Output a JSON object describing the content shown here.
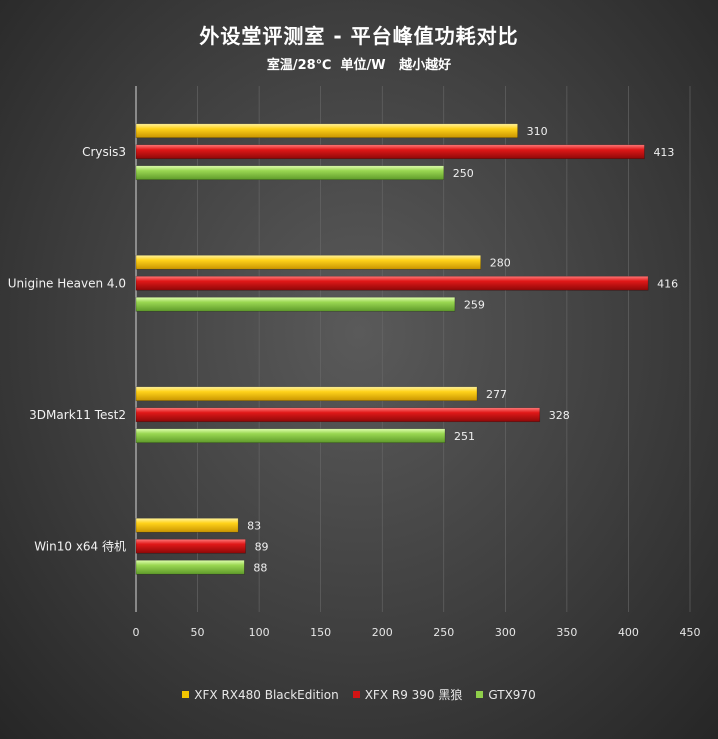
{
  "title": "外设堂评测室 -  平台峰值功耗对比",
  "subtitle": "室温/28℃  单位/W   越小越好",
  "chart_data": {
    "type": "bar",
    "orientation": "horizontal",
    "categories": [
      "Crysis3",
      "Unigine Heaven 4.0",
      "3DMark11 Test2",
      "Win10 x64 待机"
    ],
    "series": [
      {
        "name": "XFX RX480 BlackEdition",
        "color": "#f2c400",
        "values": [
          310,
          280,
          277,
          83
        ]
      },
      {
        "name": "XFX R9 390 黑狼",
        "color": "#d21414",
        "values": [
          413,
          416,
          328,
          89
        ]
      },
      {
        "name": "GTX970",
        "color": "#8fcf4a",
        "values": [
          250,
          259,
          251,
          88
        ]
      }
    ],
    "xlim": [
      0,
      450
    ],
    "xticks": [
      0,
      50,
      100,
      150,
      200,
      250,
      300,
      350,
      400,
      450
    ],
    "grid": "vertical",
    "legend": "bottom"
  }
}
